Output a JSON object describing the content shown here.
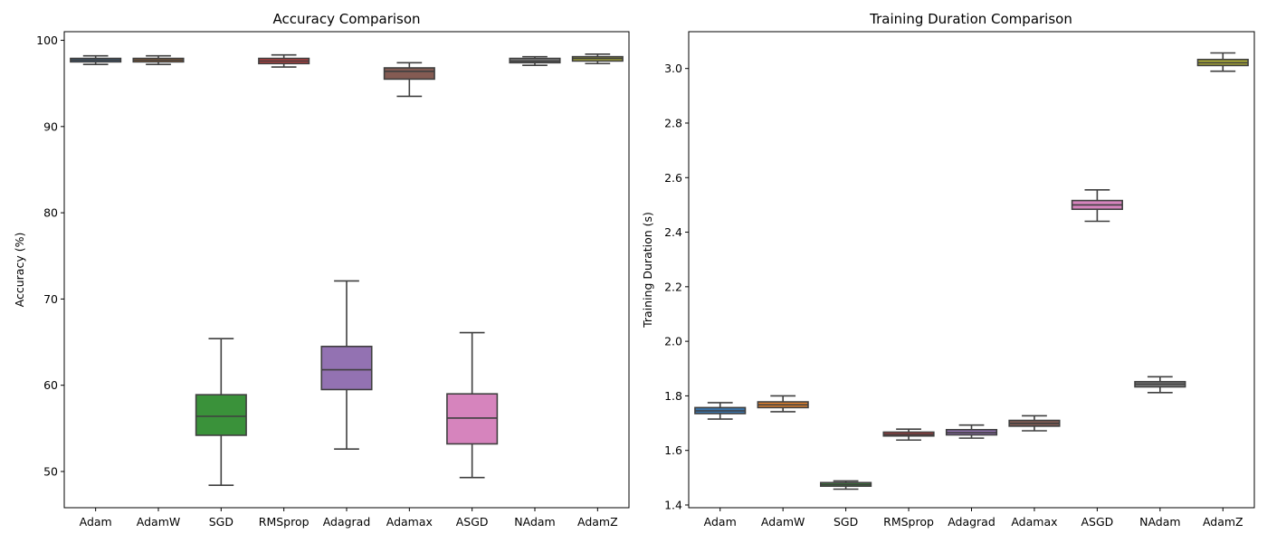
{
  "chart_data": [
    {
      "type": "box",
      "title": "Accuracy Comparison",
      "xlabel": "",
      "ylabel": "Accuracy (%)",
      "ylim": [
        45.8,
        101.0
      ],
      "yticks": [
        50,
        60,
        70,
        80,
        90,
        100
      ],
      "categories": [
        "Adam",
        "AdamW",
        "SGD",
        "RMSprop",
        "Adagrad",
        "Adamax",
        "ASGD",
        "NAdam",
        "AdamZ"
      ],
      "colors": [
        "#3a75ad",
        "#e1812c",
        "#3a923a",
        "#c03d3e",
        "#9372b2",
        "#845b53",
        "#d684bd",
        "#7f7f7f",
        "#a9aa35"
      ],
      "boxes": [
        {
          "min": 97.2,
          "q1": 97.5,
          "median": 97.7,
          "q3": 97.9,
          "max": 98.2
        },
        {
          "min": 97.2,
          "q1": 97.5,
          "median": 97.7,
          "q3": 97.9,
          "max": 98.2
        },
        {
          "min": 48.4,
          "q1": 54.2,
          "median": 56.4,
          "q3": 58.9,
          "max": 65.4
        },
        {
          "min": 96.9,
          "q1": 97.3,
          "median": 97.6,
          "q3": 97.9,
          "max": 98.3
        },
        {
          "min": 52.6,
          "q1": 59.5,
          "median": 61.8,
          "q3": 64.5,
          "max": 72.1
        },
        {
          "min": 93.5,
          "q1": 95.5,
          "median": 96.4,
          "q3": 96.8,
          "max": 97.4
        },
        {
          "min": 49.3,
          "q1": 53.2,
          "median": 56.2,
          "q3": 59.0,
          "max": 66.1
        },
        {
          "min": 97.1,
          "q1": 97.4,
          "median": 97.6,
          "q3": 97.9,
          "max": 98.1
        },
        {
          "min": 97.3,
          "q1": 97.6,
          "median": 97.9,
          "q3": 98.1,
          "max": 98.4
        }
      ]
    },
    {
      "type": "box",
      "title": "Training Duration Comparison",
      "xlabel": "",
      "ylabel": "Training Duration (s)",
      "ylim": [
        1.39,
        3.135
      ],
      "yticks": [
        1.4,
        1.6,
        1.8,
        2.0,
        2.2,
        2.4,
        2.6,
        2.8,
        3.0
      ],
      "ytick_labels": [
        "1.4",
        "1.6",
        "1.8",
        "2.0",
        "2.2",
        "2.4",
        "2.6",
        "2.8",
        "3.0"
      ],
      "categories": [
        "Adam",
        "AdamW",
        "SGD",
        "RMSprop",
        "Adagrad",
        "Adamax",
        "ASGD",
        "NAdam",
        "AdamZ"
      ],
      "colors": [
        "#3a75ad",
        "#e1812c",
        "#3a923a",
        "#c03d3e",
        "#9372b2",
        "#845b53",
        "#d684bd",
        "#7f7f7f",
        "#a9aa35"
      ],
      "boxes": [
        {
          "min": 1.715,
          "q1": 1.735,
          "median": 1.745,
          "q3": 1.757,
          "max": 1.775
        },
        {
          "min": 1.742,
          "q1": 1.757,
          "median": 1.767,
          "q3": 1.778,
          "max": 1.8
        },
        {
          "min": 1.458,
          "q1": 1.469,
          "median": 1.475,
          "q3": 1.482,
          "max": 1.488
        },
        {
          "min": 1.638,
          "q1": 1.653,
          "median": 1.659,
          "q3": 1.667,
          "max": 1.678
        },
        {
          "min": 1.645,
          "q1": 1.657,
          "median": 1.665,
          "q3": 1.676,
          "max": 1.693
        },
        {
          "min": 1.672,
          "q1": 1.689,
          "median": 1.699,
          "q3": 1.71,
          "max": 1.727
        },
        {
          "min": 2.44,
          "q1": 2.484,
          "median": 2.5,
          "q3": 2.516,
          "max": 2.555
        },
        {
          "min": 1.812,
          "q1": 1.833,
          "median": 1.843,
          "q3": 1.852,
          "max": 1.87
        },
        {
          "min": 2.99,
          "q1": 3.011,
          "median": 3.021,
          "q3": 3.033,
          "max": 3.057
        }
      ]
    }
  ]
}
